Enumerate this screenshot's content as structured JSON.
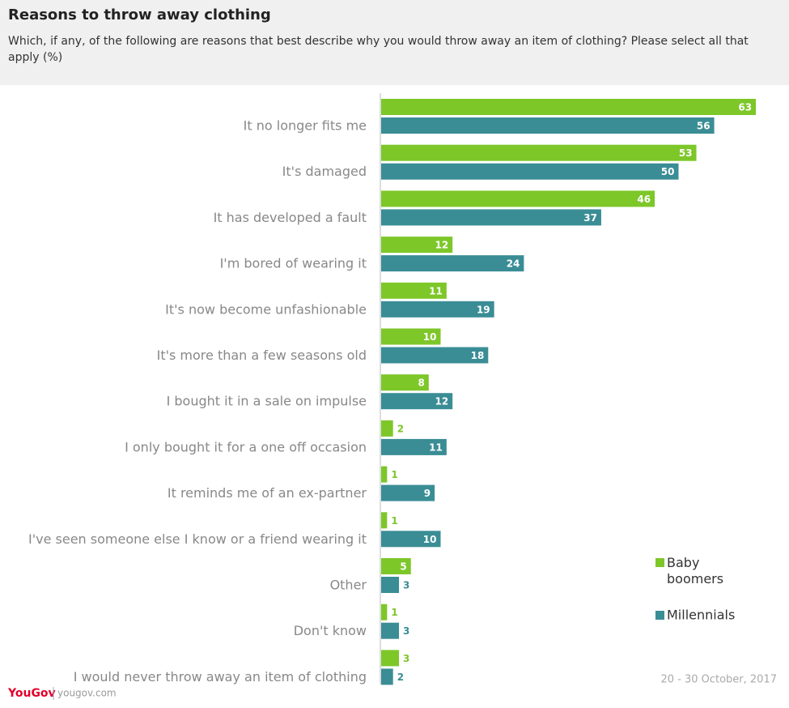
{
  "chart_data": {
    "type": "hbar",
    "title": "Reasons to throw away clothing",
    "subtitle": "Which, if any, of the following are reasons that best describe why you would throw away an item of clothing? Please select all that apply (%)",
    "categories": [
      "It no longer fits me",
      "It's damaged",
      "It has developed a fault",
      "I'm bored of wearing it",
      "It's now become unfashionable",
      "It's more than a few seasons old",
      "I bought it in a sale on impulse",
      "I only bought it for a one off occasion",
      "It reminds me of an ex-partner",
      "I've seen someone else I know or a friend wearing it",
      "Other",
      "Don't know",
      "I would never throw away an item of clothing"
    ],
    "series": [
      {
        "name": "Baby boomers",
        "color": "#7dc729",
        "values": [
          63,
          53,
          46,
          12,
          11,
          10,
          8,
          2,
          1,
          1,
          5,
          1,
          3
        ]
      },
      {
        "name": "Millennials",
        "color": "#3a8d95",
        "values": [
          56,
          50,
          37,
          24,
          19,
          18,
          12,
          11,
          9,
          10,
          3,
          3,
          2
        ]
      }
    ],
    "date_note": "20 - 30 October, 2017",
    "logo": "YouGov",
    "source": "yougov.com"
  }
}
